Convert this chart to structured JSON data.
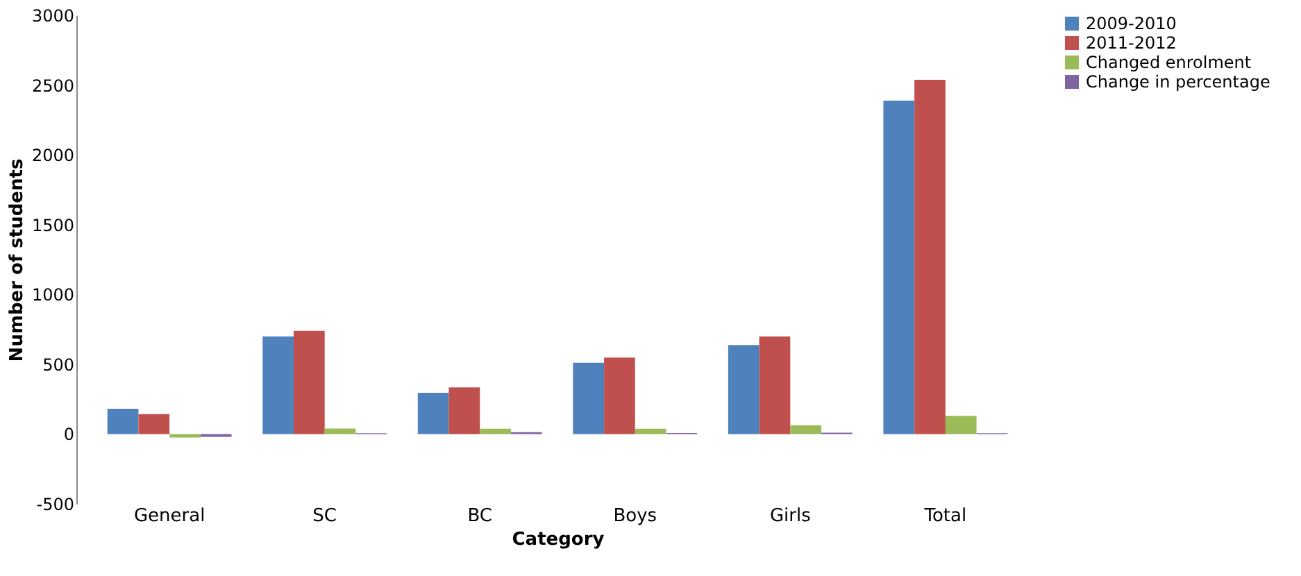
{
  "chart_data": {
    "type": "bar",
    "xlabel": "Category",
    "ylabel": "Number of students",
    "categories": [
      "General",
      "SC",
      "BC",
      "Boys",
      "Girls",
      "Total"
    ],
    "series": [
      {
        "name": "2009-2010",
        "color": "#4f81bd",
        "values": [
          181,
          700,
          296,
          510,
          637,
          2388
        ]
      },
      {
        "name": "2011-2012",
        "color": "#c0504d",
        "values": [
          143,
          739,
          334,
          548,
          700,
          2538
        ]
      },
      {
        "name": "Changed enrolment",
        "color": "#9bbb59",
        "values": [
          -25,
          39,
          38,
          38,
          63,
          130
        ]
      },
      {
        "name": "Change in percentage",
        "color": "#8064a2",
        "values": [
          -20,
          6,
          13,
          7,
          10,
          6
        ]
      }
    ],
    "ylim": [
      -500,
      3000
    ],
    "yticks": [
      -500,
      0,
      500,
      1000,
      1500,
      2000,
      2500,
      3000
    ],
    "grid": false,
    "legend": "right"
  }
}
